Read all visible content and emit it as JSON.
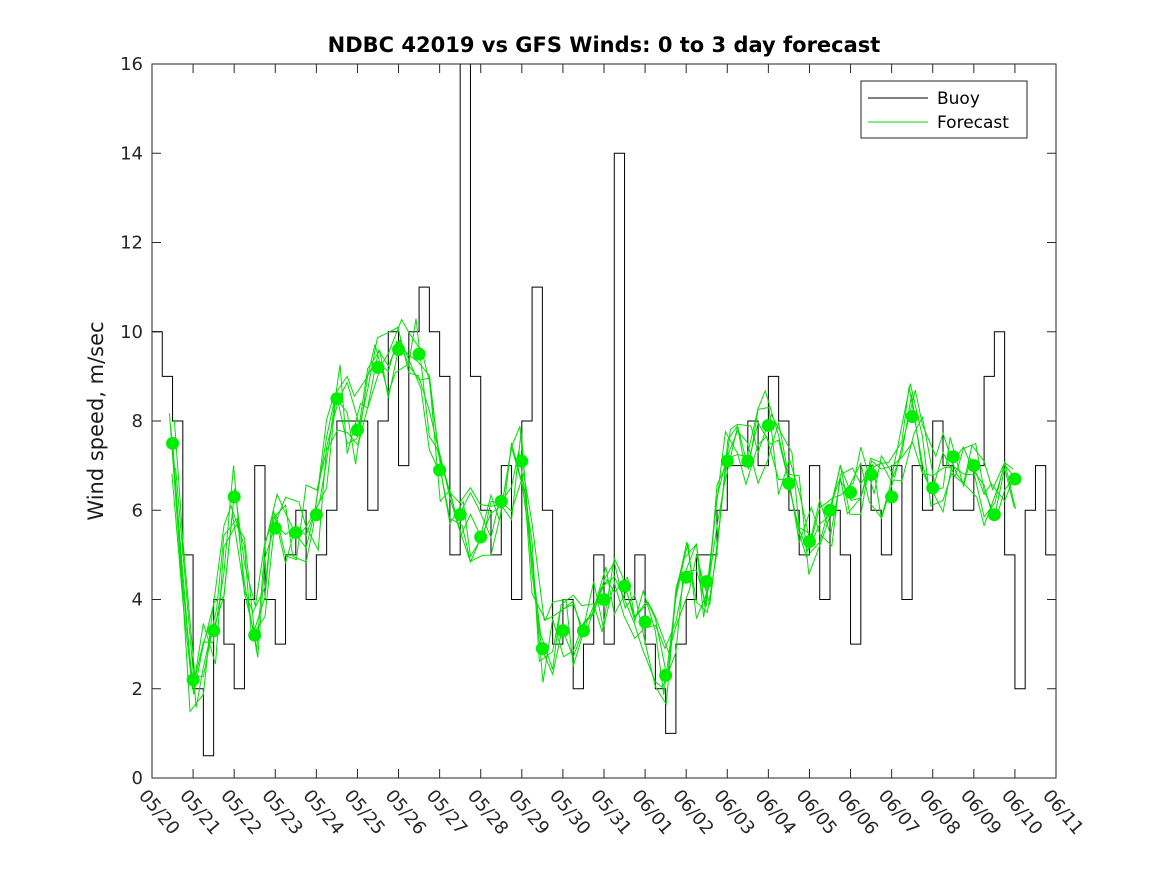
{
  "chart_data": {
    "type": "line",
    "title": "NDBC 42019 vs GFS Winds: 0 to 3 day forecast",
    "xlabel": "",
    "ylabel": "Wind speed, m/sec",
    "ylim": [
      0,
      16
    ],
    "yticks": [
      0,
      2,
      4,
      6,
      8,
      10,
      12,
      14,
      16
    ],
    "xlim": [
      "05/20",
      "06/11"
    ],
    "xtick_labels": [
      "05/20",
      "05/21",
      "05/22",
      "05/23",
      "05/24",
      "05/25",
      "05/26",
      "05/27",
      "05/28",
      "05/29",
      "05/30",
      "05/31",
      "06/01",
      "06/02",
      "06/03",
      "06/04",
      "06/05",
      "06/06",
      "06/07",
      "06/08",
      "06/09",
      "06/10",
      "06/11"
    ],
    "grid": false,
    "legend": {
      "position": "top-right",
      "entries": [
        "Buoy",
        "Forecast"
      ]
    },
    "colors": {
      "buoy": "#000000",
      "forecast": "#00dd00",
      "markers": "#00ee00"
    },
    "series": [
      {
        "name": "Buoy",
        "style": "line",
        "x": [
          "05/20",
          "05/20 06:00",
          "05/20 12:00",
          "05/20 18:00",
          "05/21",
          "05/21 06:00",
          "05/21 12:00",
          "05/21 18:00",
          "05/22",
          "05/22 06:00",
          "05/22 12:00",
          "05/22 18:00",
          "05/23",
          "05/23 06:00",
          "05/23 12:00",
          "05/23 18:00",
          "05/24",
          "05/24 06:00",
          "05/24 12:00",
          "05/24 18:00",
          "05/25",
          "05/25 06:00",
          "05/25 12:00",
          "05/25 18:00",
          "05/26",
          "05/26 06:00",
          "05/26 12:00",
          "05/26 18:00",
          "05/27",
          "05/27 06:00",
          "05/27 12:00",
          "05/27 18:00",
          "05/28",
          "05/28 06:00",
          "05/28 12:00",
          "05/28 18:00",
          "05/29",
          "05/29 06:00",
          "05/29 12:00",
          "05/29 18:00",
          "05/30",
          "05/30 06:00",
          "05/30 12:00",
          "05/30 18:00",
          "05/31",
          "05/31 06:00",
          "05/31 12:00",
          "05/31 18:00",
          "06/01",
          "06/01 06:00",
          "06/01 12:00",
          "06/01 18:00",
          "06/02",
          "06/02 06:00",
          "06/02 12:00",
          "06/02 18:00",
          "06/03",
          "06/03 06:00",
          "06/03 12:00",
          "06/03 18:00",
          "06/04",
          "06/04 06:00",
          "06/04 12:00",
          "06/04 18:00",
          "06/05",
          "06/05 06:00",
          "06/05 12:00",
          "06/05 18:00",
          "06/06",
          "06/06 06:00",
          "06/06 12:00",
          "06/06 18:00",
          "06/07",
          "06/07 06:00",
          "06/07 12:00",
          "06/07 18:00",
          "06/08",
          "06/08 06:00",
          "06/08 12:00",
          "06/08 18:00",
          "06/09",
          "06/09 06:00",
          "06/09 12:00",
          "06/09 18:00",
          "06/10",
          "06/10 06:00",
          "06/10 12:00",
          "06/10 18:00",
          "06/11"
        ],
        "values": [
          10,
          9,
          8,
          5,
          2,
          0.5,
          4,
          3,
          2,
          4,
          7,
          4,
          3,
          5,
          6,
          4,
          5,
          6,
          8,
          8,
          8,
          6,
          8,
          10,
          7,
          10,
          11,
          10,
          9,
          5,
          16,
          9,
          6,
          5,
          7,
          4,
          8,
          11,
          6,
          3,
          4,
          2,
          3,
          5,
          3,
          14,
          4,
          5,
          3,
          2,
          1,
          3,
          4,
          5,
          5,
          6,
          7,
          7,
          8,
          7,
          9,
          8,
          6,
          5,
          7,
          4,
          6,
          5,
          3,
          7,
          6,
          5,
          7,
          4,
          7,
          6,
          8,
          7,
          6,
          6,
          7,
          9,
          10,
          5,
          2,
          6,
          7,
          5,
          6
        ]
      },
      {
        "name": "Forecast",
        "style": "markers",
        "x": [
          "05/20 12:00",
          "05/21",
          "05/21 12:00",
          "05/22",
          "05/22 12:00",
          "05/23",
          "05/23 12:00",
          "05/24",
          "05/24 12:00",
          "05/25",
          "05/25 12:00",
          "05/26",
          "05/26 12:00",
          "05/27",
          "05/27 12:00",
          "05/28",
          "05/28 12:00",
          "05/29",
          "05/29 12:00",
          "05/30",
          "05/30 12:00",
          "05/31",
          "05/31 12:00",
          "06/01",
          "06/01 12:00",
          "06/02",
          "06/02 12:00",
          "06/03",
          "06/03 12:00",
          "06/04",
          "06/04 12:00",
          "06/05",
          "06/05 12:00",
          "06/06",
          "06/06 12:00",
          "06/07",
          "06/07 12:00",
          "06/08",
          "06/08 12:00",
          "06/09",
          "06/09 12:00",
          "06/10"
        ],
        "values": [
          7.5,
          2.2,
          3.3,
          6.3,
          3.2,
          5.6,
          5.5,
          5.9,
          8.5,
          7.8,
          9.2,
          9.6,
          9.5,
          6.9,
          5.9,
          5.4,
          6.2,
          7.1,
          2.9,
          3.3,
          3.3,
          4.0,
          4.3,
          3.5,
          2.3,
          4.5,
          4.4,
          7.1,
          7.1,
          7.9,
          6.6,
          5.3,
          6.0,
          6.4,
          6.8,
          6.3,
          8.1,
          6.5,
          7.2,
          7.0,
          5.9,
          6.7
        ]
      }
    ]
  }
}
